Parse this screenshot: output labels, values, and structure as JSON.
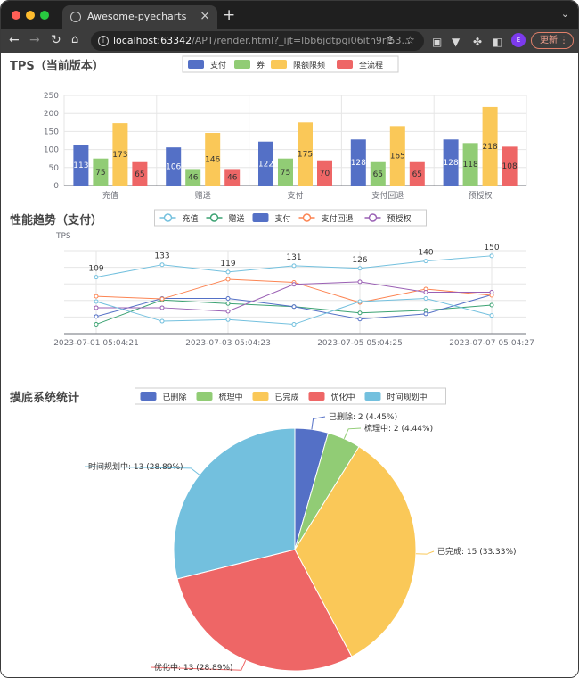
{
  "browser": {
    "tab_title": "Awesome-pyecharts",
    "url_host": "localhost:63342",
    "url_path": "/APT/render.html?_ijt=lbb6jdtpgi06ith9rj53...",
    "update_label": "更新",
    "profile_initial": "E",
    "colors": {
      "tabbar": "#1f1f1f",
      "toolbar": "#3c3c3c",
      "accent_update": "#e0806a"
    }
  },
  "chart_data": [
    {
      "type": "bar",
      "title": "TPS（当前版本）",
      "categories": [
        "充值",
        "赠送",
        "支付",
        "支付回退",
        "预授权"
      ],
      "series": [
        {
          "name": "支付",
          "color": "#5470c6",
          "values": [
            113,
            106,
            122,
            128,
            128
          ]
        },
        {
          "name": "券",
          "color": "#91cc75",
          "values": [
            75,
            46,
            75,
            65,
            118
          ]
        },
        {
          "name": "限额限频",
          "color": "#fac858",
          "values": [
            173,
            146,
            175,
            165,
            218
          ]
        },
        {
          "name": "全流程",
          "color": "#ee6666",
          "values": [
            65,
            46,
            70,
            65,
            108
          ]
        }
      ],
      "yticks": [
        0,
        50,
        100,
        150,
        200,
        250
      ],
      "ylim": [
        0,
        250
      ],
      "legend": "top-center",
      "grid": true
    },
    {
      "type": "line",
      "title": "性能趋势（支付）",
      "ylabel": "TPS",
      "x_ticks": [
        "2023-07-01 05:04:21",
        "2023-07-03 05:04:23",
        "2023-07-05 05:04:25",
        "2023-07-07 05:04:27"
      ],
      "x": [
        "2023-07-01 05:04:21",
        "2023-07-02",
        "2023-07-03 05:04:23",
        "2023-07-04",
        "2023-07-05 05:04:25",
        "2023-07-06",
        "2023-07-07 05:04:27"
      ],
      "series": [
        {
          "name": "充值",
          "color": "#73c0de",
          "values": [
            109,
            133,
            119,
            131,
            126,
            140,
            150
          ],
          "labels": true
        },
        {
          "name": "赠送",
          "color": "#3ba272",
          "values": [
            18,
            65,
            58,
            52,
            40,
            45,
            55
          ]
        },
        {
          "name": "支付",
          "color": "#5470c6",
          "values": [
            33,
            68,
            68,
            52,
            28,
            38,
            75
          ]
        },
        {
          "name": "支付回退",
          "color": "#fc8452",
          "values": [
            72,
            67,
            105,
            99,
            60,
            86,
            74
          ]
        },
        {
          "name": "预授权",
          "color": "#9a60b4",
          "values": [
            50,
            50,
            43,
            95,
            100,
            80,
            80
          ]
        },
        {
          "name": "",
          "color": "#73c0de",
          "values": [
            62,
            24,
            27,
            18,
            62,
            68,
            35
          ],
          "labels": false
        }
      ],
      "ylim": [
        0,
        160
      ],
      "legend": "top-center",
      "grid": true
    },
    {
      "type": "pie",
      "title": "摸底系统统计",
      "slices": [
        {
          "name": "已删除",
          "value": 2,
          "percent": "4.45%",
          "color": "#5470c6",
          "label": "已删除: 2 (4.45%)"
        },
        {
          "name": "梳理中",
          "value": 2,
          "percent": "4.44%",
          "color": "#91cc75",
          "label": "梳理中: 2 (4.44%)"
        },
        {
          "name": "已完成",
          "value": 15,
          "percent": "33.33%",
          "color": "#fac858",
          "label": "已完成: 15 (33.33%)"
        },
        {
          "name": "优化中",
          "value": 13,
          "percent": "28.89%",
          "color": "#ee6666",
          "label": "优化中: 13 (28.89%)"
        },
        {
          "name": "时间规划中",
          "value": 13,
          "percent": "28.89%",
          "color": "#73c0de",
          "label": "时间规划中: 13 (28.89%)"
        }
      ],
      "legend": "top-center"
    }
  ]
}
